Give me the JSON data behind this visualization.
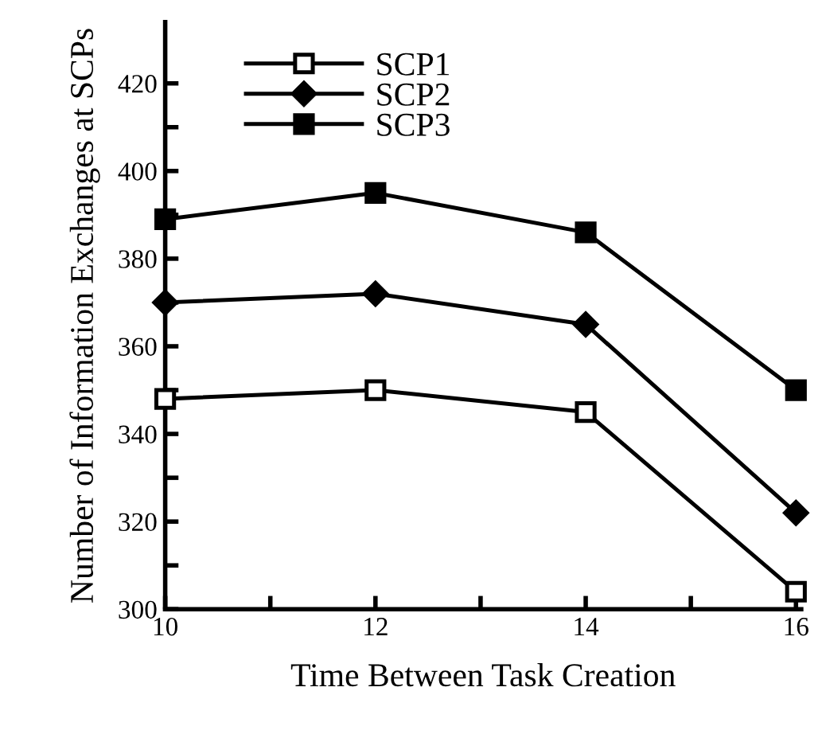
{
  "chart_data": {
    "type": "line",
    "xlabel": "Time Between Task Creation",
    "ylabel": "Number of Information Exchanges at SCPs",
    "x": [
      10,
      12,
      14,
      16
    ],
    "series": [
      {
        "name": "SCP1",
        "color": "#000000",
        "marker": "square_open",
        "values": [
          348,
          350,
          345,
          304
        ]
      },
      {
        "name": "SCP2",
        "color": "#000000",
        "marker": "diamond",
        "values": [
          370,
          372,
          365,
          322
        ]
      },
      {
        "name": "SCP3",
        "color": "#000000",
        "marker": "square",
        "values": [
          389,
          395,
          386,
          350
        ]
      }
    ],
    "xlim": [
      10,
      16.05
    ],
    "ylim": [
      300,
      434
    ],
    "xticks": [
      10,
      {
        "value": 11,
        "label": null
      },
      12,
      {
        "value": 13,
        "label": null
      },
      14,
      {
        "value": 15,
        "label": null
      },
      16
    ],
    "yticks": [
      300,
      {
        "value": 310,
        "label": null
      },
      320,
      {
        "value": 330,
        "label": null
      },
      340,
      {
        "value": 350,
        "label": null
      },
      360,
      {
        "value": 370,
        "label": null
      },
      380,
      {
        "value": 390,
        "label": null
      },
      400,
      {
        "value": 410,
        "label": null
      },
      420
    ],
    "grid": false,
    "legend": "top left",
    "line_style": "solid"
  }
}
